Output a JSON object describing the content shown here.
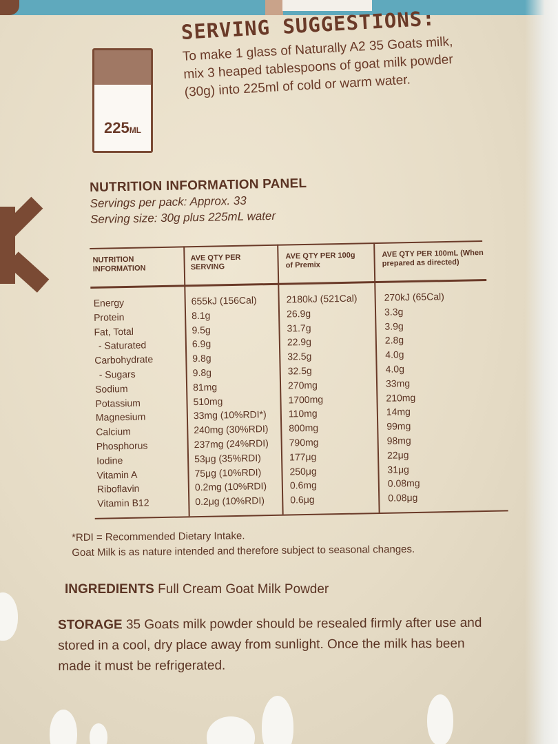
{
  "glass_label": "225",
  "glass_unit": "ML",
  "serving": {
    "title": "SERVING SUGGESTIONS:",
    "text": "To make 1 glass of Naturally A2 35 Goats milk, mix 3 heaped tablespoons of goat milk powder (30g) into 225ml of cold or warm water."
  },
  "panel": {
    "title": "NUTRITION INFORMATION PANEL",
    "servings_per_pack": "Servings per pack: Approx. 33",
    "serving_size": "Serving size: 30g plus 225mL water"
  },
  "table": {
    "headers": [
      "NUTRITION INFORMATION",
      "AVE QTY PER SERVING",
      "AVE QTY PER 100g of Premix",
      "AVE QTY PER 100mL (When prepared as directed)"
    ],
    "rows": [
      [
        "Energy",
        "655kJ (156Cal)",
        "2180kJ (521Cal)",
        "270kJ (65Cal)"
      ],
      [
        "Protein",
        "8.1g",
        "26.9g",
        "3.3g"
      ],
      [
        "Fat, Total",
        "9.5g",
        "31.7g",
        "3.9g"
      ],
      [
        "- Saturated",
        "6.9g",
        "22.9g",
        "2.8g"
      ],
      [
        "Carbohydrate",
        "9.8g",
        "32.5g",
        "4.0g"
      ],
      [
        "- Sugars",
        "9.8g",
        "32.5g",
        "4.0g"
      ],
      [
        "Sodium",
        "81mg",
        "270mg",
        "33mg"
      ],
      [
        "Potassium",
        "510mg",
        "1700mg",
        "210mg"
      ],
      [
        "Magnesium",
        "33mg (10%RDI*)",
        "110mg",
        "14mg"
      ],
      [
        "Calcium",
        "240mg (30%RDI)",
        "800mg",
        "99mg"
      ],
      [
        "Phosphorus",
        "237mg (24%RDI)",
        "790mg",
        "98mg"
      ],
      [
        "Iodine",
        "53μg (35%RDI)",
        "177μg",
        "22μg"
      ],
      [
        "Vitamin A",
        "75μg (10%RDI)",
        "250μg",
        "31μg"
      ],
      [
        "Riboflavin",
        "0.2mg (10%RDI)",
        "0.6mg",
        "0.08mg"
      ],
      [
        "Vitamin B12",
        "0.2μg (10%RDI)",
        "0.6μg",
        "0.08μg"
      ]
    ]
  },
  "footnote_rdi": "*RDI = Recommended Dietary Intake.",
  "footnote_goat": "Goat Milk is as nature intended and therefore subject to seasonal changes.",
  "ingredients": {
    "label": "INGREDIENTS",
    "text": "Full Cream Goat Milk Powder"
  },
  "storage": {
    "label": "STORAGE",
    "text": "35 Goats milk powder should be resealed firmly after use and stored in a cool, dry place away from sunlight. Once the milk has been made it must be refrigerated."
  },
  "colors": {
    "brown": "#6a3a28",
    "paper": "#e9e0cb",
    "blue": "#5fa9bd"
  }
}
